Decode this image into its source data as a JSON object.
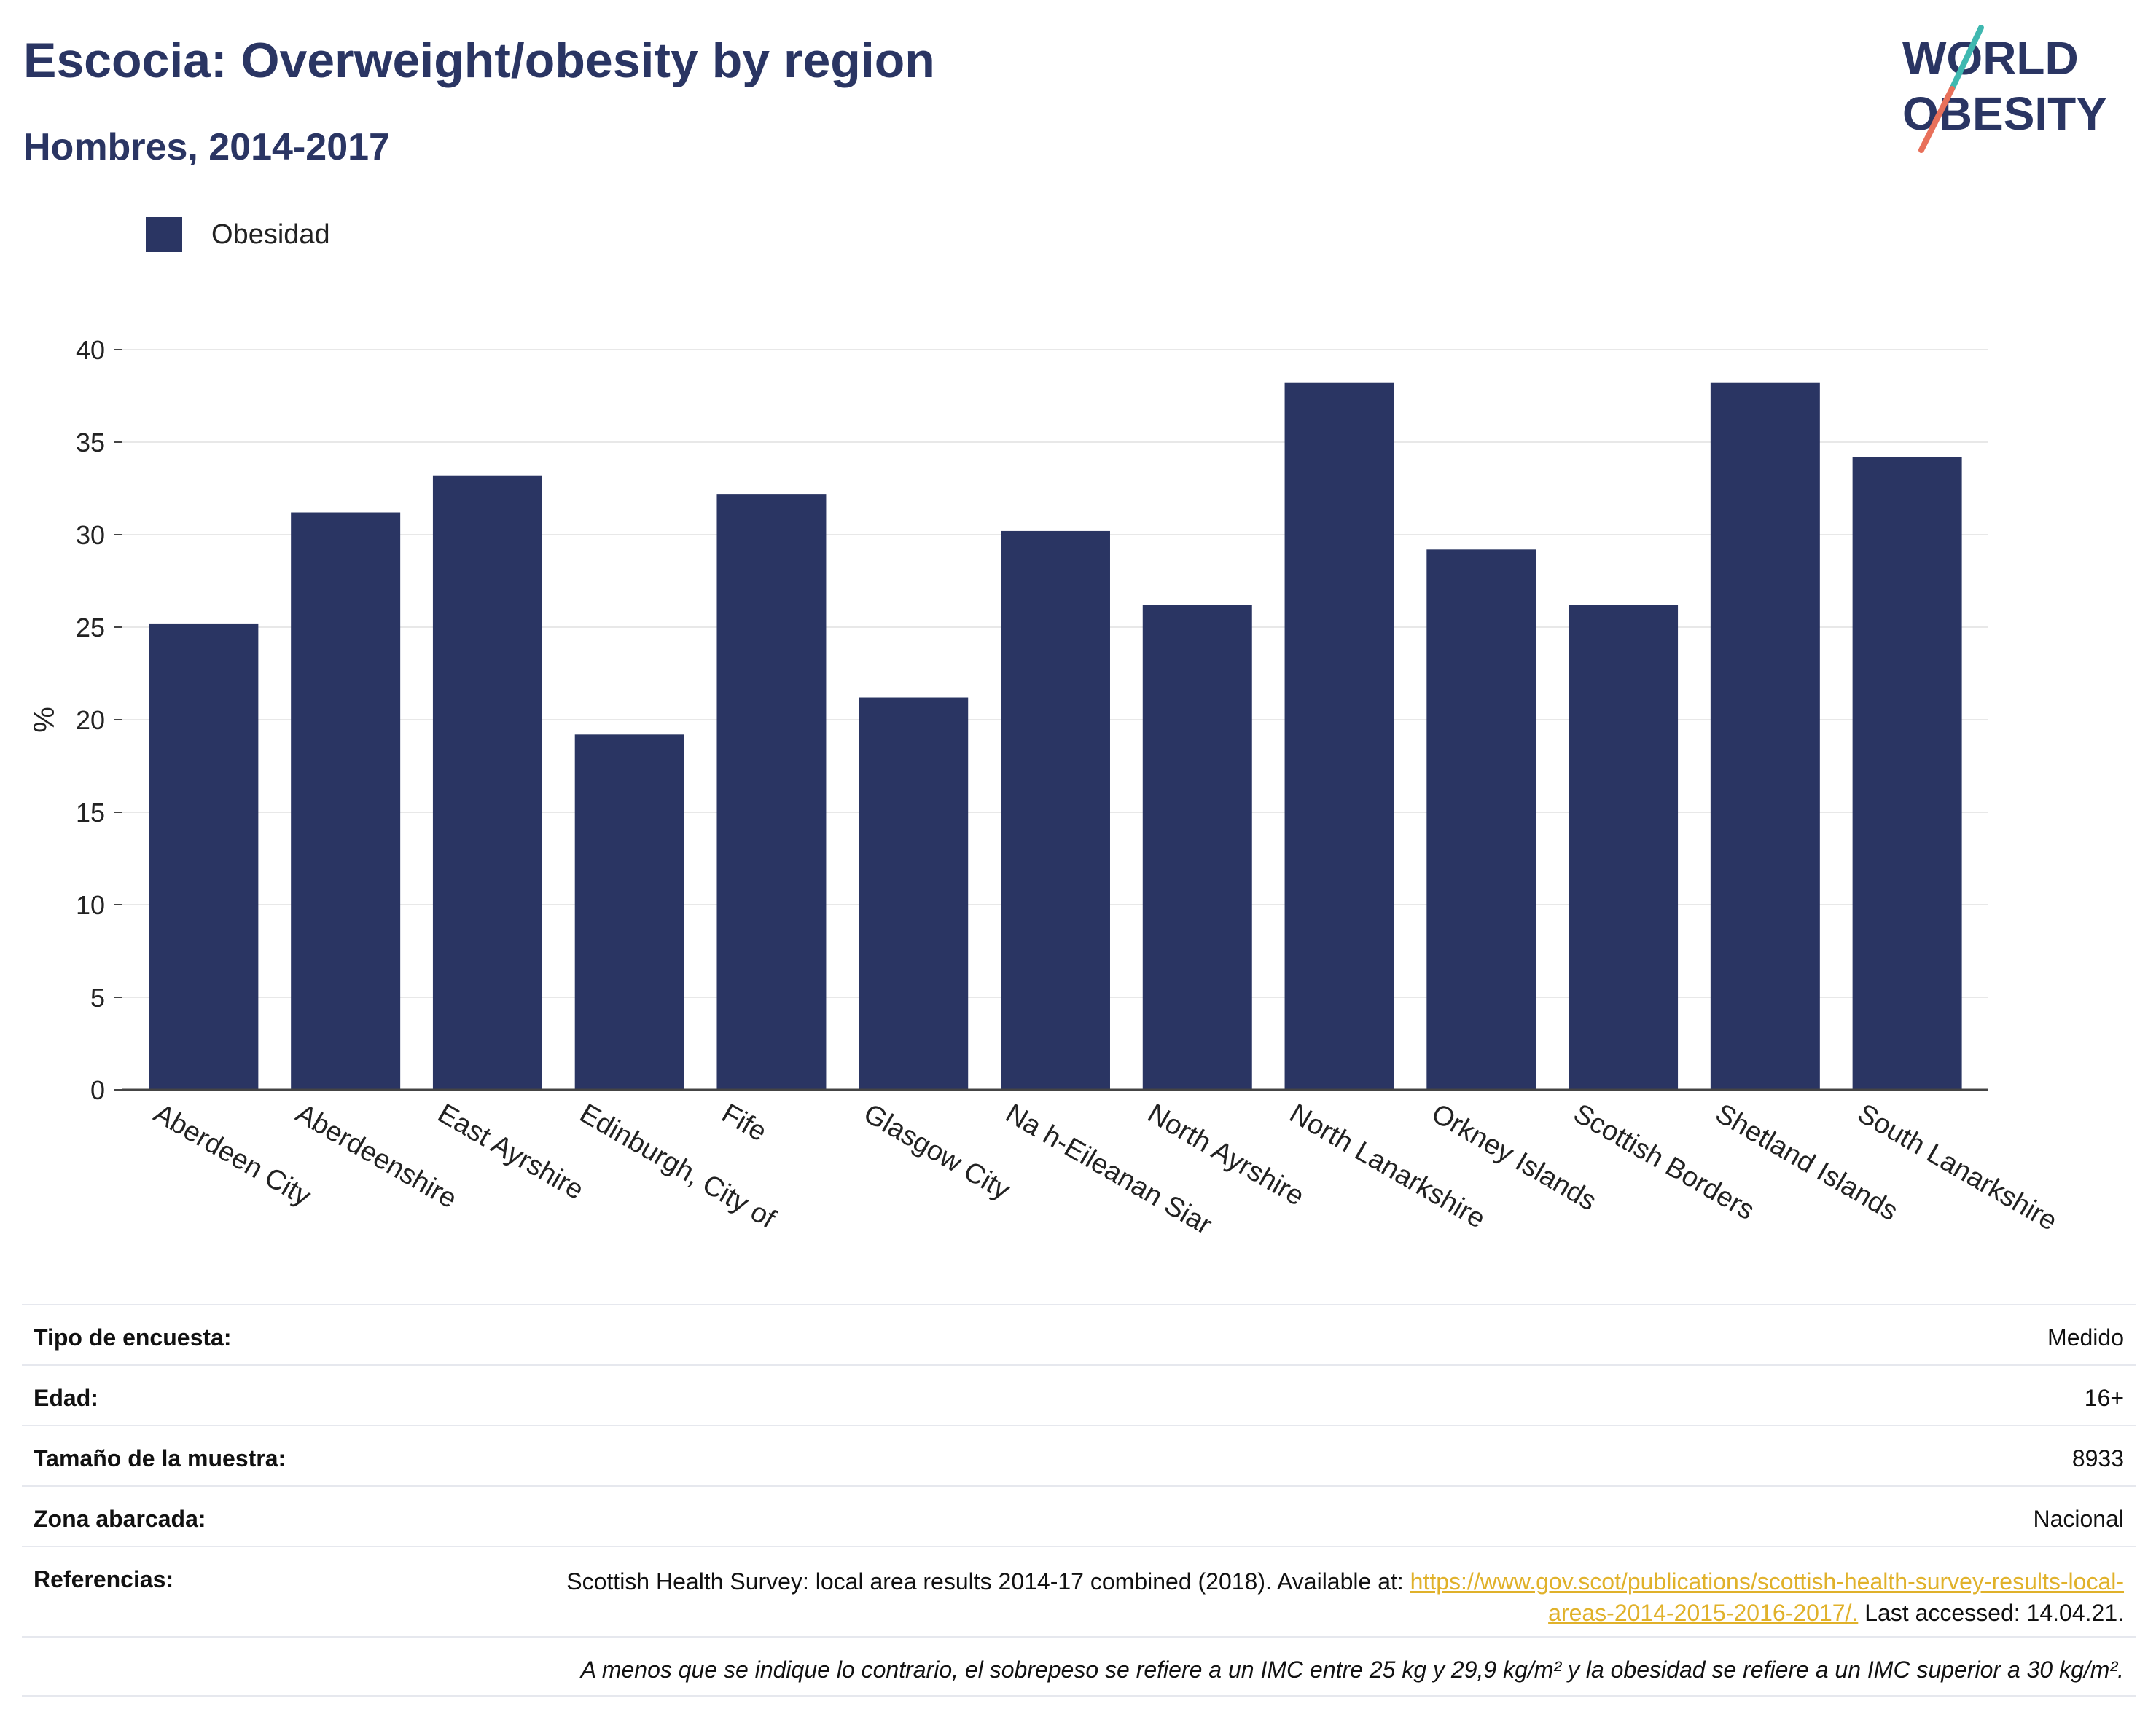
{
  "header": {
    "title": "Escocia: Overweight/obesity by region",
    "subtitle": "Hombres, 2014-2017"
  },
  "logo": {
    "line1": "WORLD",
    "line2": "OBESITY",
    "name": "world-obesity-logo"
  },
  "colors": {
    "bar": "#2a3563",
    "text": "#2a3563",
    "link": "#e0b12a",
    "accent_teal": "#3fb8b0",
    "accent_coral": "#e8705a",
    "grid": "#e8e8e8"
  },
  "chart_data": {
    "type": "bar",
    "categories": [
      "Aberdeen City",
      "Aberdeenshire",
      "East Ayrshire",
      "Edinburgh, City of",
      "Fife",
      "Glasgow City",
      "Na h-Eileanan Siar",
      "North Ayrshire",
      "North Lanarkshire",
      "Orkney Islands",
      "Scottish Borders",
      "Shetland Islands",
      "South Lanarkshire"
    ],
    "series": [
      {
        "name": "Obesidad",
        "values": [
          25.2,
          31.2,
          33.2,
          19.2,
          32.2,
          21.2,
          30.2,
          26.2,
          38.2,
          29.2,
          26.2,
          38.2,
          34.2
        ]
      }
    ],
    "title": "Escocia: Overweight/obesity by region",
    "subtitle": "Hombres, 2014-2017",
    "xlabel": "",
    "ylabel": "%",
    "ylim": [
      0,
      40
    ],
    "yticks": [
      0,
      5,
      10,
      15,
      20,
      25,
      30,
      35,
      40
    ],
    "grid": true,
    "legend": "top-left"
  },
  "info": {
    "survey_type": {
      "label": "Tipo de encuesta:",
      "value": "Medido"
    },
    "age": {
      "label": "Edad:",
      "value": "16+"
    },
    "sample_size": {
      "label": "Tamaño de la muestra:",
      "value": "8933"
    },
    "area": {
      "label": "Zona abarcada:",
      "value": "Nacional"
    },
    "references": {
      "label": "Referencias:",
      "text_before": "Scottish Health Survey: local area results 2014-17 combined (2018). Available at: ",
      "link": "https://www.gov.scot/publications/scottish-health-survey-results-local-areas-2014-2015-2016-2017/.",
      "text_after": " Last accessed: 14.04.21."
    },
    "note": "A menos que se indique lo contrario, el sobrepeso se refiere a un IMC entre 25 kg y 29,9 kg/m² y la obesidad se refiere a un IMC superior a 30 kg/m²."
  }
}
